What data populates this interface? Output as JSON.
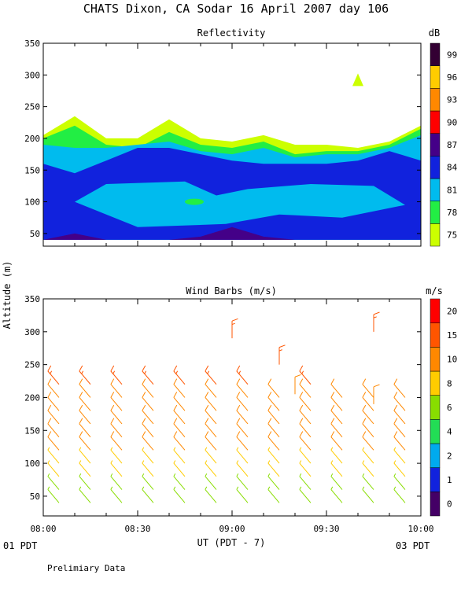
{
  "header": {
    "title": "CHATS Dixon, CA  Sodar  16 April 2007  day 106",
    "ylabel": "Altitude (m)",
    "footer_note": "Prelimiary Data"
  },
  "colors": {
    "ref": [
      "#ccff00",
      "#22ee44",
      "#00bbee",
      "#1122dd",
      "#440088",
      "#ff0000",
      "#ff8800",
      "#ffcc00",
      "#330033"
    ],
    "wind": [
      "#440066",
      "#1122dd",
      "#00aaee",
      "#22dd55",
      "#88dd00",
      "#ffcc00",
      "#ff8800",
      "#ff5500",
      "#ff0000"
    ]
  },
  "time_axis": {
    "ticks": [
      "08:00",
      "08:30",
      "09:00",
      "09:30",
      "10:00"
    ],
    "xlabel": "UT  (PDT - 7)",
    "left_date": "01 PDT",
    "right_date": "03 PDT"
  },
  "chart_data": [
    {
      "type": "heatmap",
      "title": "Reflectivity",
      "unit": "dB",
      "xlim": [
        "08:00",
        "10:00"
      ],
      "ylim": [
        30,
        350
      ],
      "yticks": [
        50,
        100,
        150,
        200,
        250,
        300,
        350
      ],
      "colorbar": {
        "unit": "dB",
        "labels": [
          "75",
          "78",
          "81",
          "84",
          "87",
          "90",
          "93",
          "96",
          "99"
        ]
      },
      "profile_times": [
        "08:00",
        "08:10",
        "08:20",
        "08:30",
        "08:40",
        "08:50",
        "09:00",
        "09:10",
        "09:20",
        "09:30",
        "09:40",
        "09:50",
        "10:00"
      ],
      "contour_top_heights": {
        "75": [
          205,
          235,
          200,
          200,
          230,
          200,
          195,
          205,
          190,
          190,
          185,
          195,
          220
        ],
        "78": [
          200,
          220,
          190,
          185,
          210,
          190,
          185,
          195,
          175,
          180,
          180,
          190,
          215
        ],
        "81": [
          190,
          185,
          185,
          190,
          195,
          180,
          175,
          185,
          170,
          175,
          175,
          185,
          205
        ],
        "84": [
          160,
          145,
          165,
          185,
          185,
          175,
          165,
          160,
          160,
          160,
          165,
          180,
          165
        ],
        "87": [
          40,
          50,
          40,
          40,
          40,
          45,
          60,
          45,
          40,
          40,
          40,
          40,
          40
        ]
      },
      "features": [
        {
          "level": "81",
          "desc": "inner region",
          "alt_range": [
            65,
            135
          ]
        },
        {
          "level": "78",
          "desc": "small patch",
          "time": "08:48",
          "alt": 100
        },
        {
          "level": "75",
          "desc": "isolated patch",
          "time": "09:40",
          "alt": 290
        }
      ]
    },
    {
      "type": "scatter",
      "title": "Wind Barbs (m/s)",
      "unit": "m/s",
      "xlim": [
        "08:00",
        "10:00"
      ],
      "ylim": [
        20,
        350
      ],
      "yticks": [
        50,
        100,
        150,
        200,
        250,
        300,
        350
      ],
      "colorbar": {
        "unit": "m/s",
        "labels": [
          "0",
          "1",
          "2",
          "4",
          "6",
          "8",
          "10",
          "15",
          "20"
        ]
      },
      "profile_times": [
        "08:05",
        "08:15",
        "08:25",
        "08:35",
        "08:45",
        "08:55",
        "09:05",
        "09:15",
        "09:25",
        "09:35",
        "09:45",
        "09:55"
      ],
      "altitudes": [
        40,
        60,
        80,
        100,
        120,
        140,
        160,
        180,
        200,
        220
      ],
      "top_altitude_per_profile": [
        220,
        230,
        220,
        220,
        220,
        220,
        220,
        210,
        220,
        210,
        210,
        210
      ],
      "direction_deg": 320,
      "speed_ms": [
        6,
        7,
        8,
        9,
        10,
        11,
        12,
        13,
        14,
        15
      ],
      "extra_barbs": [
        {
          "time": "09:00",
          "alt": 290,
          "speed": 16
        },
        {
          "time": "09:15",
          "alt": 250,
          "speed": 18
        },
        {
          "time": "09:45",
          "alt": 300,
          "speed": 16
        },
        {
          "time": "09:45",
          "alt": 190,
          "speed": 14
        },
        {
          "time": "09:20",
          "alt": 205,
          "speed": 12
        }
      ]
    }
  ]
}
